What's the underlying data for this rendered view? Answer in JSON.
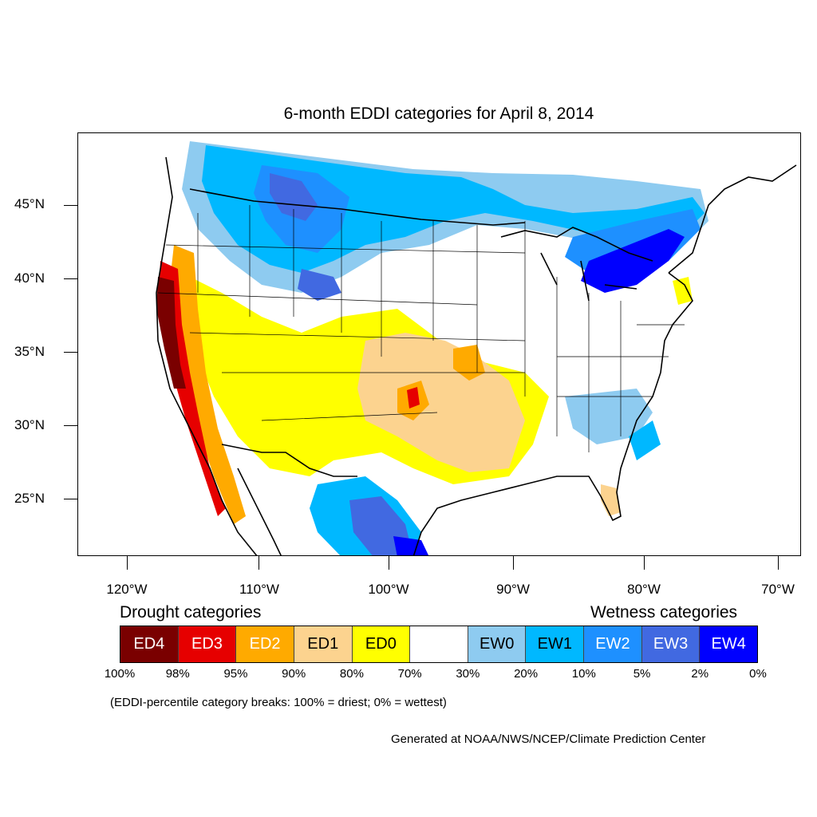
{
  "title": "6-month EDDI categories for April 8, 2014",
  "latitude_labels": [
    "45°N",
    "40°N",
    "35°N",
    "30°N",
    "25°N"
  ],
  "longitude_labels": [
    "120°W",
    "110°W",
    "100°W",
    "90°W",
    "80°W",
    "70°W"
  ],
  "legend": {
    "drought_heading": "Drought categories",
    "wetness_heading": "Wetness categories",
    "categories": [
      {
        "label": "ED4",
        "color": "#7a0000",
        "text_color": "#ffffff"
      },
      {
        "label": "ED3",
        "color": "#e60000",
        "text_color": "#ffffff"
      },
      {
        "label": "ED2",
        "color": "#ffaa00",
        "text_color": "#ffffff"
      },
      {
        "label": "ED1",
        "color": "#fcd38f",
        "text_color": "#000000"
      },
      {
        "label": "ED0",
        "color": "#ffff00",
        "text_color": "#000000"
      },
      {
        "label": "",
        "color": "#ffffff",
        "text_color": "#000000"
      },
      {
        "label": "EW0",
        "color": "#8ecbf0",
        "text_color": "#000000"
      },
      {
        "label": "EW1",
        "color": "#00b8ff",
        "text_color": "#000000"
      },
      {
        "label": "EW2",
        "color": "#1e90ff",
        "text_color": "#ffffff"
      },
      {
        "label": "EW3",
        "color": "#4169e1",
        "text_color": "#ffffff"
      },
      {
        "label": "EW4",
        "color": "#0000ff",
        "text_color": "#ffffff"
      }
    ],
    "percentiles": [
      "100%",
      "98%",
      "95%",
      "90%",
      "80%",
      "70%",
      "30%",
      "20%",
      "10%",
      "5%",
      "2%",
      "0%"
    ]
  },
  "note": "(EDDI-percentile category breaks: 100% = driest; 0% = wettest)",
  "credit": "Generated at NOAA/NWS/NCEP/Climate Prediction Center"
}
